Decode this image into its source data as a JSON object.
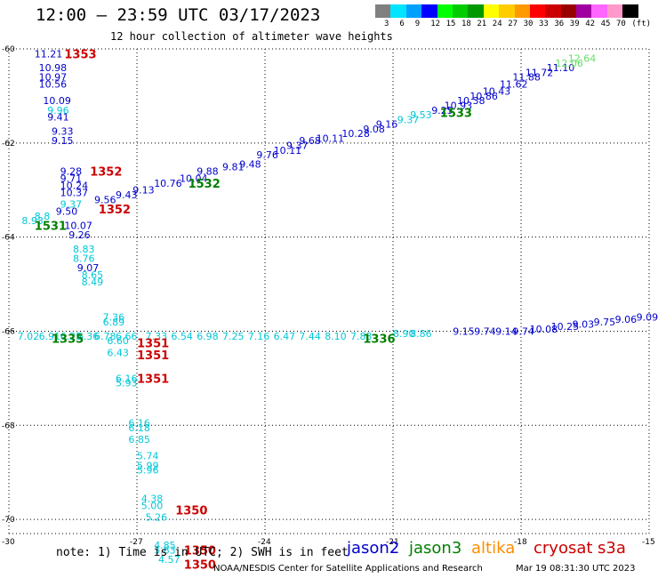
{
  "title": "12:00 – 23:59 UTC 03/17/2023",
  "subtitle": "12 hour collection of altimeter wave heights",
  "colorbar": {
    "colors": [
      "#808080",
      "#00e5ff",
      "#00a0ff",
      "#0000ff",
      "#00ff00",
      "#00cc00",
      "#009900",
      "#ffff00",
      "#ffcc00",
      "#ff9900",
      "#ff0000",
      "#cc0000",
      "#990000",
      "#a000a0",
      "#ff66ff",
      "#ff99cc",
      "#000000"
    ],
    "labels": [
      "3",
      "6",
      "9",
      "12",
      "15",
      "18",
      "21",
      "24",
      "27",
      "30",
      "33",
      "36",
      "39",
      "42",
      "45",
      "70",
      "(ft)"
    ]
  },
  "axes": {
    "lat_labels": [
      "-60",
      "-62",
      "-64",
      "-66",
      "-68",
      "-70"
    ],
    "lat_values": [
      -60,
      -62,
      -64,
      -66,
      -68,
      -70
    ],
    "lon_labels": [
      "-30",
      "-27",
      "-24",
      "-21",
      "-18",
      "-15"
    ],
    "lon_values": [
      -30,
      -27,
      -24,
      -21,
      -18,
      -15
    ]
  },
  "colors": {
    "jason2": "#0000cc",
    "jason3": "#008000",
    "altika": "#ff8c00",
    "cryosat": "#cc0000",
    "s3a": "#cc0000",
    "light": "#00c8d8",
    "green_light": "#66dd66"
  },
  "heights": [
    {
      "t": "11.21",
      "lon": -29.4,
      "lat": -60.1,
      "c": "jason2"
    },
    {
      "t": "10.98",
      "lon": -29.3,
      "lat": -60.4,
      "c": "jason2"
    },
    {
      "t": "10.97",
      "lon": -29.3,
      "lat": -60.6,
      "c": "jason2"
    },
    {
      "t": "10.56",
      "lon": -29.3,
      "lat": -60.75,
      "c": "jason2"
    },
    {
      "t": "10.09",
      "lon": -29.2,
      "lat": -61.1,
      "c": "jason2"
    },
    {
      "t": "9.96",
      "lon": -29.1,
      "lat": -61.3,
      "c": "light"
    },
    {
      "t": "9.41",
      "lon": -29.1,
      "lat": -61.45,
      "c": "jason2"
    },
    {
      "t": "9.33",
      "lon": -29.0,
      "lat": -61.75,
      "c": "jason2"
    },
    {
      "t": "9.15",
      "lon": -29.0,
      "lat": -61.95,
      "c": "jason2"
    },
    {
      "t": "9.28",
      "lon": -28.8,
      "lat": -62.6,
      "c": "jason2"
    },
    {
      "t": "9.71",
      "lon": -28.8,
      "lat": -62.75,
      "c": "jason2"
    },
    {
      "t": "10.24",
      "lon": -28.8,
      "lat": -62.9,
      "c": "jason2"
    },
    {
      "t": "10.37",
      "lon": -28.8,
      "lat": -63.05,
      "c": "jason2"
    },
    {
      "t": "9.37",
      "lon": -28.8,
      "lat": -63.3,
      "c": "light"
    },
    {
      "t": "9.50",
      "lon": -28.9,
      "lat": -63.45,
      "c": "jason2"
    },
    {
      "t": "10.07",
      "lon": -28.7,
      "lat": -63.75,
      "c": "jason2"
    },
    {
      "t": "9.26",
      "lon": -28.6,
      "lat": -63.95,
      "c": "jason2"
    },
    {
      "t": "8.83",
      "lon": -28.5,
      "lat": -64.25,
      "c": "light"
    },
    {
      "t": "8.76",
      "lon": -28.5,
      "lat": -64.45,
      "c": "light"
    },
    {
      "t": "9.07",
      "lon": -28.4,
      "lat": -64.65,
      "c": "jason2"
    },
    {
      "t": "8.65",
      "lon": -28.3,
      "lat": -64.8,
      "c": "light"
    },
    {
      "t": "8.49",
      "lon": -28.3,
      "lat": -64.95,
      "c": "light"
    },
    {
      "t": "8.93",
      "lon": -29.7,
      "lat": -63.65,
      "c": "light"
    },
    {
      "t": "8.8",
      "lon": -29.4,
      "lat": -63.55,
      "c": "light"
    },
    {
      "t": "9.56",
      "lon": -28.0,
      "lat": -63.2,
      "c": "jason2"
    },
    {
      "t": "9.43",
      "lon": -27.5,
      "lat": -63.1,
      "c": "jason2"
    },
    {
      "t": "9.13",
      "lon": -27.1,
      "lat": -63.0,
      "c": "jason2"
    },
    {
      "t": "10.76",
      "lon": -26.6,
      "lat": -62.85,
      "c": "jason2"
    },
    {
      "t": "10.04",
      "lon": -26.0,
      "lat": -62.75,
      "c": "jason2"
    },
    {
      "t": "9.88",
      "lon": -25.6,
      "lat": -62.6,
      "c": "jason2"
    },
    {
      "t": "9.81",
      "lon": -25.0,
      "lat": -62.5,
      "c": "jason2"
    },
    {
      "t": "9.48",
      "lon": -24.6,
      "lat": -62.45,
      "c": "jason2"
    },
    {
      "t": "9.76",
      "lon": -24.2,
      "lat": -62.25,
      "c": "jason2"
    },
    {
      "t": "10.11",
      "lon": -23.8,
      "lat": -62.15,
      "c": "jason2"
    },
    {
      "t": "9.37",
      "lon": -23.5,
      "lat": -62.05,
      "c": "jason2"
    },
    {
      "t": "9.68",
      "lon": -23.2,
      "lat": -61.95,
      "c": "jason2"
    },
    {
      "t": "10.11",
      "lon": -22.8,
      "lat": -61.9,
      "c": "jason2"
    },
    {
      "t": "10.28",
      "lon": -22.2,
      "lat": -61.8,
      "c": "jason2"
    },
    {
      "t": "9.08",
      "lon": -21.7,
      "lat": -61.7,
      "c": "jason2"
    },
    {
      "t": "9.16",
      "lon": -21.4,
      "lat": -61.6,
      "c": "jason2"
    },
    {
      "t": "9.37",
      "lon": -20.9,
      "lat": -61.5,
      "c": "light"
    },
    {
      "t": "9.53",
      "lon": -20.6,
      "lat": -61.4,
      "c": "light"
    },
    {
      "t": "9.25",
      "lon": -20.1,
      "lat": -61.3,
      "c": "jason2"
    },
    {
      "t": "10.93",
      "lon": -19.8,
      "lat": -61.2,
      "c": "jason2"
    },
    {
      "t": "10.38",
      "lon": -19.5,
      "lat": -61.1,
      "c": "jason2"
    },
    {
      "t": "10.86",
      "lon": -19.2,
      "lat": -61.0,
      "c": "jason2"
    },
    {
      "t": "10.43",
      "lon": -18.9,
      "lat": -60.9,
      "c": "jason2"
    },
    {
      "t": "11.62",
      "lon": -18.5,
      "lat": -60.75,
      "c": "jason2"
    },
    {
      "t": "11.88",
      "lon": -18.2,
      "lat": -60.6,
      "c": "jason2"
    },
    {
      "t": "11.72",
      "lon": -17.9,
      "lat": -60.5,
      "c": "jason2"
    },
    {
      "t": "11.10",
      "lon": -17.4,
      "lat": -60.4,
      "c": "jason2"
    },
    {
      "t": "12.06",
      "lon": -17.2,
      "lat": -60.3,
      "c": "green_light"
    },
    {
      "t": "12.64",
      "lon": -16.9,
      "lat": -60.2,
      "c": "green_light"
    },
    {
      "t": "7.02",
      "lon": -29.8,
      "lat": -66.1,
      "c": "light"
    },
    {
      "t": "6.91",
      "lon": -29.3,
      "lat": -66.1,
      "c": "light"
    },
    {
      "t": "6.25",
      "lon": -28.8,
      "lat": -66.1,
      "c": "light"
    },
    {
      "t": "6.36",
      "lon": -28.4,
      "lat": -66.1,
      "c": "light"
    },
    {
      "t": "6.78",
      "lon": -28.0,
      "lat": -66.1,
      "c": "light"
    },
    {
      "t": "6.66",
      "lon": -27.5,
      "lat": -66.1,
      "c": "light"
    },
    {
      "t": "7.33",
      "lon": -26.8,
      "lat": -66.1,
      "c": "light"
    },
    {
      "t": "6.54",
      "lon": -26.2,
      "lat": -66.1,
      "c": "light"
    },
    {
      "t": "6.98",
      "lon": -25.6,
      "lat": -66.1,
      "c": "light"
    },
    {
      "t": "7.25",
      "lon": -25.0,
      "lat": -66.1,
      "c": "light"
    },
    {
      "t": "7.16",
      "lon": -24.4,
      "lat": -66.1,
      "c": "light"
    },
    {
      "t": "6.47",
      "lon": -23.8,
      "lat": -66.1,
      "c": "light"
    },
    {
      "t": "7.44",
      "lon": -23.2,
      "lat": -66.1,
      "c": "light"
    },
    {
      "t": "8.10",
      "lon": -22.6,
      "lat": -66.1,
      "c": "light"
    },
    {
      "t": "7.83",
      "lon": -22.0,
      "lat": -66.1,
      "c": "light"
    },
    {
      "t": "8.90",
      "lon": -21.0,
      "lat": -66.05,
      "c": "light"
    },
    {
      "t": "8.86",
      "lon": -20.6,
      "lat": -66.05,
      "c": "light"
    },
    {
      "t": "9.15",
      "lon": -19.6,
      "lat": -66.0,
      "c": "jason2"
    },
    {
      "t": "9.74",
      "lon": -19.1,
      "lat": -66.0,
      "c": "jason2"
    },
    {
      "t": "9.14",
      "lon": -18.6,
      "lat": -66.0,
      "c": "jason2"
    },
    {
      "t": "9.74",
      "lon": -18.2,
      "lat": -66.0,
      "c": "jason2"
    },
    {
      "t": "10.08",
      "lon": -17.8,
      "lat": -65.95,
      "c": "jason2"
    },
    {
      "t": "10.25",
      "lon": -17.3,
      "lat": -65.9,
      "c": "jason2"
    },
    {
      "t": "9.03",
      "lon": -16.8,
      "lat": -65.85,
      "c": "jason2"
    },
    {
      "t": "9.75",
      "lon": -16.3,
      "lat": -65.8,
      "c": "jason2"
    },
    {
      "t": "9.06",
      "lon": -15.8,
      "lat": -65.75,
      "c": "jason2"
    },
    {
      "t": "9.09",
      "lon": -15.3,
      "lat": -65.7,
      "c": "jason2"
    },
    {
      "t": "7.36",
      "lon": -27.8,
      "lat": -65.7,
      "c": "light"
    },
    {
      "t": "6.89",
      "lon": -27.8,
      "lat": -65.8,
      "c": "light"
    },
    {
      "t": "6.60",
      "lon": -27.7,
      "lat": -66.2,
      "c": "light"
    },
    {
      "t": "6.43",
      "lon": -27.7,
      "lat": -66.45,
      "c": "light"
    },
    {
      "t": "6.16",
      "lon": -27.5,
      "lat": -67.0,
      "c": "light"
    },
    {
      "t": "5.93",
      "lon": -27.5,
      "lat": -67.1,
      "c": "light"
    },
    {
      "t": "6.16",
      "lon": -27.2,
      "lat": -67.95,
      "c": "light"
    },
    {
      "t": "6.18",
      "lon": -27.2,
      "lat": -68.05,
      "c": "light"
    },
    {
      "t": "6.85",
      "lon": -27.2,
      "lat": -68.3,
      "c": "light"
    },
    {
      "t": "5.74",
      "lon": -27.0,
      "lat": -68.65,
      "c": "light"
    },
    {
      "t": "5.99",
      "lon": -27.0,
      "lat": -68.85,
      "c": "light"
    },
    {
      "t": "5.96",
      "lon": -27.0,
      "lat": -68.95,
      "c": "light"
    },
    {
      "t": "4.38",
      "lon": -26.9,
      "lat": -69.55,
      "c": "light"
    },
    {
      "t": "5.00",
      "lon": -26.9,
      "lat": -69.7,
      "c": "light"
    },
    {
      "t": "5.26",
      "lon": -26.8,
      "lat": -69.95,
      "c": "light"
    },
    {
      "t": "4.85",
      "lon": -26.6,
      "lat": -70.55,
      "c": "light"
    },
    {
      "t": "5.83",
      "lon": -26.6,
      "lat": -70.65,
      "c": "light"
    },
    {
      "t": "4.57",
      "lon": -26.5,
      "lat": -70.85,
      "c": "light"
    }
  ],
  "passes": [
    {
      "t": "1353",
      "lon": -28.7,
      "lat": -60.1,
      "c": "cryosat"
    },
    {
      "t": "1352",
      "lon": -28.1,
      "lat": -62.6,
      "c": "cryosat"
    },
    {
      "t": "1352",
      "lon": -27.9,
      "lat": -63.4,
      "c": "cryosat"
    },
    {
      "t": "1531",
      "lon": -29.4,
      "lat": -63.75,
      "c": "jason3"
    },
    {
      "t": "1532",
      "lon": -25.8,
      "lat": -62.85,
      "c": "jason3"
    },
    {
      "t": "1533",
      "lon": -19.9,
      "lat": -61.35,
      "c": "jason3"
    },
    {
      "t": "1335",
      "lon": -29.0,
      "lat": -66.15,
      "c": "jason3"
    },
    {
      "t": "1336",
      "lon": -21.7,
      "lat": -66.15,
      "c": "jason3"
    },
    {
      "t": "1351",
      "lon": -27.0,
      "lat": -66.25,
      "c": "cryosat"
    },
    {
      "t": "1351",
      "lon": -27.0,
      "lat": -66.5,
      "c": "cryosat"
    },
    {
      "t": "1351",
      "lon": -27.0,
      "lat": -67.0,
      "c": "cryosat"
    },
    {
      "t": "1350",
      "lon": -26.1,
      "lat": -69.8,
      "c": "cryosat"
    },
    {
      "t": "1350",
      "lon": -25.9,
      "lat": -70.65,
      "c": "cryosat"
    },
    {
      "t": "1350",
      "lon": -25.9,
      "lat": -70.95,
      "c": "cryosat"
    }
  ],
  "note": "note: 1) Time is in UTC; 2) SWH is in feet",
  "satellites": [
    {
      "name": "jason2",
      "color": "#0000cc"
    },
    {
      "name": "jason3",
      "color": "#008000"
    },
    {
      "name": "altika",
      "color": "#ff8c00"
    },
    {
      "name": "cryosat",
      "color": "#cc0000"
    },
    {
      "name": "s3a",
      "color": "#cc0000"
    }
  ],
  "footer": "NOAA/NESDIS Center for Satellite Applications and Research",
  "footer_date": "Mar 19 08:31:30 UTC 2023"
}
